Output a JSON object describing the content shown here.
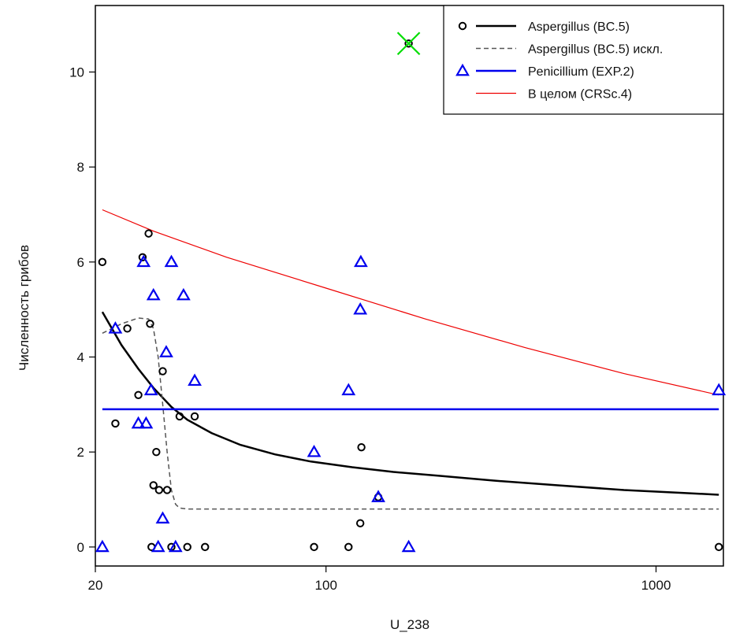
{
  "chart_data": {
    "type": "scatter",
    "title": "",
    "xlabel": "U_238",
    "ylabel": "Численность грибов",
    "x_scale": "log",
    "xlim": [
      20,
      1600
    ],
    "ylim": [
      -0.4,
      11.4
    ],
    "x_ticks": [
      20,
      100,
      1000
    ],
    "x_tick_labels": [
      "20",
      "100",
      "1000"
    ],
    "y_ticks": [
      0,
      2,
      4,
      6,
      8,
      10
    ],
    "y_tick_labels": [
      "0",
      "2",
      "4",
      "6",
      "8",
      "10"
    ],
    "grid": false,
    "legend_position": "top-right",
    "legend": [
      {
        "label": "Aspergillus (BC.5)",
        "symbol": "circle",
        "line": "solid-thick",
        "color": "#000000"
      },
      {
        "label": "Aspergillus (BC.5) искл.",
        "symbol": "none",
        "line": "dashed",
        "color": "#555555"
      },
      {
        "label": "Penicillium (EXP.2)",
        "symbol": "triangle",
        "line": "solid",
        "color": "#0000ee"
      },
      {
        "label": "В целом (CRSc.4)",
        "symbol": "none",
        "line": "solid-thin",
        "color": "#ee0000"
      }
    ],
    "points": [
      {
        "series": "Aspergillus (BC.5)",
        "marker": "circle",
        "color": "#000000",
        "x": [
          21,
          23,
          25,
          27,
          27.8,
          29,
          29.6,
          29.3,
          30,
          30.6,
          31.2,
          32,
          33,
          34,
          36,
          38,
          40,
          43,
          92,
          117,
          127,
          128,
          144,
          178,
          1550
        ],
        "y": [
          6.0,
          2.6,
          4.6,
          3.2,
          6.1,
          6.6,
          0.0,
          4.7,
          1.3,
          2.0,
          1.2,
          3.7,
          1.2,
          0.0,
          2.75,
          0.0,
          2.75,
          0.0,
          0.0,
          0.0,
          0.5,
          2.1,
          1.05,
          10.6,
          0.0
        ]
      },
      {
        "series": "Penicillium (EXP.2)",
        "marker": "triangle",
        "color": "#0000ee",
        "x": [
          21,
          23,
          27,
          28,
          28.5,
          29.5,
          30,
          31,
          32,
          32.8,
          34,
          35,
          37,
          40,
          92,
          117,
          127,
          127.5,
          144,
          178,
          1550
        ],
        "y": [
          0.0,
          4.6,
          2.6,
          6.0,
          2.6,
          3.3,
          5.3,
          0.0,
          0.6,
          4.1,
          6.0,
          0.0,
          5.3,
          3.5,
          2.0,
          3.3,
          5.0,
          6.0,
          1.05,
          0.0,
          3.3
        ]
      }
    ],
    "excluded_point": {
      "x": 178,
      "y": 10.6,
      "marker": "cross",
      "color": "#00dd00"
    },
    "lines": [
      {
        "series": "Aspergillus (BC.5)",
        "style": "solid",
        "color": "#000000",
        "width": 2.5,
        "x": [
          21,
          24,
          27,
          30,
          34,
          38,
          45,
          55,
          70,
          90,
          120,
          160,
          220,
          320,
          500,
          800,
          1200,
          1550
        ],
        "y": [
          4.95,
          4.25,
          3.75,
          3.35,
          2.95,
          2.68,
          2.4,
          2.15,
          1.95,
          1.8,
          1.68,
          1.58,
          1.5,
          1.4,
          1.3,
          1.2,
          1.14,
          1.1
        ]
      },
      {
        "series": "Aspergillus (BC.5) искл.",
        "style": "dashed",
        "color": "#555555",
        "width": 1.5,
        "x": [
          21,
          24,
          27,
          29,
          30,
          31,
          32,
          33,
          34,
          35,
          36,
          38,
          45,
          100,
          1550
        ],
        "y": [
          4.5,
          4.7,
          4.82,
          4.8,
          4.6,
          4.0,
          3.0,
          2.0,
          1.2,
          0.9,
          0.82,
          0.8,
          0.8,
          0.8,
          0.8
        ]
      },
      {
        "series": "Penicillium (EXP.2)",
        "style": "solid",
        "color": "#0000ee",
        "width": 2.5,
        "x": [
          21,
          1550
        ],
        "y": [
          2.9,
          2.9
        ]
      },
      {
        "series": "В целом (CRSc.4)",
        "style": "solid",
        "color": "#ee0000",
        "width": 1.2,
        "x": [
          21,
          30,
          50,
          100,
          200,
          400,
          800,
          1550
        ],
        "y": [
          7.1,
          6.65,
          6.1,
          5.45,
          4.8,
          4.2,
          3.65,
          3.2
        ]
      }
    ]
  }
}
